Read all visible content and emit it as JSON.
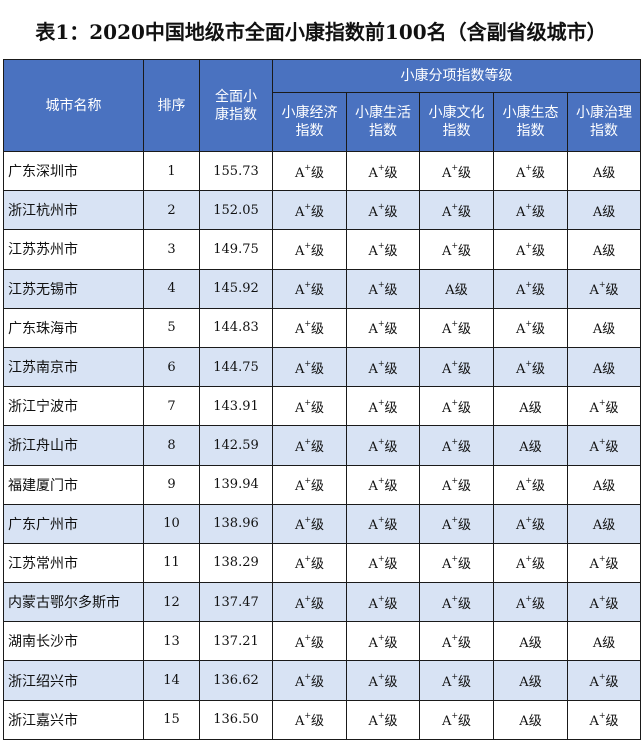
{
  "title": "表1：2020中国地级市全面小康指数前100名（含副省级城市）",
  "headers": {
    "city": "城市名称",
    "rank": "排序",
    "index": "全面小康指数",
    "group": "小康分项指数等级",
    "sub": [
      "小康经济指数",
      "小康生活指数",
      "小康文化指数",
      "小康生态指数",
      "小康治理指数"
    ]
  },
  "rows": [
    {
      "city": "广东深圳市",
      "rank": "1",
      "index": "155.73",
      "grades": [
        "A+级",
        "A+级",
        "A+级",
        "A+级",
        "A级"
      ]
    },
    {
      "city": "浙江杭州市",
      "rank": "2",
      "index": "152.05",
      "grades": [
        "A+级",
        "A+级",
        "A+级",
        "A+级",
        "A级"
      ]
    },
    {
      "city": "江苏苏州市",
      "rank": "3",
      "index": "149.75",
      "grades": [
        "A+级",
        "A+级",
        "A+级",
        "A+级",
        "A级"
      ]
    },
    {
      "city": "江苏无锡市",
      "rank": "4",
      "index": "145.92",
      "grades": [
        "A+级",
        "A+级",
        "A级",
        "A+级",
        "A+级"
      ]
    },
    {
      "city": "广东珠海市",
      "rank": "5",
      "index": "144.83",
      "grades": [
        "A+级",
        "A+级",
        "A+级",
        "A+级",
        "A级"
      ]
    },
    {
      "city": "江苏南京市",
      "rank": "6",
      "index": "144.75",
      "grades": [
        "A+级",
        "A+级",
        "A+级",
        "A+级",
        "A级"
      ]
    },
    {
      "city": "浙江宁波市",
      "rank": "7",
      "index": "143.91",
      "grades": [
        "A+级",
        "A+级",
        "A+级",
        "A级",
        "A+级"
      ]
    },
    {
      "city": "浙江舟山市",
      "rank": "8",
      "index": "142.59",
      "grades": [
        "A+级",
        "A+级",
        "A+级",
        "A级",
        "A+级"
      ]
    },
    {
      "city": "福建厦门市",
      "rank": "9",
      "index": "139.94",
      "grades": [
        "A+级",
        "A+级",
        "A+级",
        "A+级",
        "A级"
      ]
    },
    {
      "city": "广东广州市",
      "rank": "10",
      "index": "138.96",
      "grades": [
        "A+级",
        "A+级",
        "A+级",
        "A+级",
        "A级"
      ]
    },
    {
      "city": "江苏常州市",
      "rank": "11",
      "index": "138.29",
      "grades": [
        "A+级",
        "A+级",
        "A+级",
        "A+级",
        "A+级"
      ]
    },
    {
      "city": "内蒙古鄂尔多斯市",
      "rank": "12",
      "index": "137.47",
      "grades": [
        "A+级",
        "A+级",
        "A+级",
        "A+级",
        "A+级"
      ]
    },
    {
      "city": "湖南长沙市",
      "rank": "13",
      "index": "137.21",
      "grades": [
        "A+级",
        "A+级",
        "A+级",
        "A级",
        "A级"
      ]
    },
    {
      "city": "浙江绍兴市",
      "rank": "14",
      "index": "136.62",
      "grades": [
        "A+级",
        "A+级",
        "A+级",
        "A级",
        "A+级"
      ]
    },
    {
      "city": "浙江嘉兴市",
      "rank": "15",
      "index": "136.50",
      "grades": [
        "A+级",
        "A+级",
        "A+级",
        "A级",
        "A+级"
      ]
    }
  ]
}
